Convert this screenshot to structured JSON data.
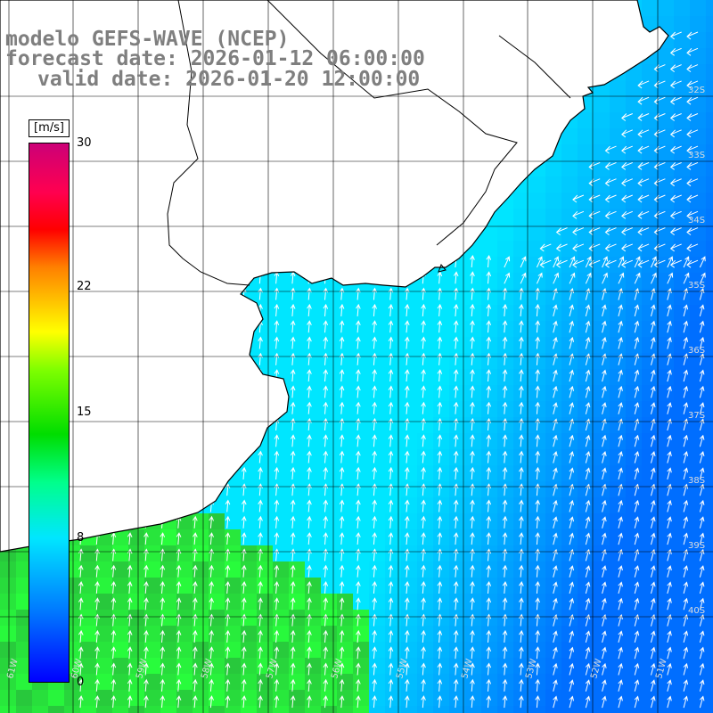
{
  "title": {
    "line1": "modelo GEFS-WAVE (NCEP)",
    "line2": "forecast date: 2026-01-12 06:00:00",
    "line3": "valid date: 2026-01-20 12:00:00"
  },
  "colorbar": {
    "unit": "[m/s]",
    "ticks": [
      {
        "label": "30",
        "value": 30
      },
      {
        "label": "22",
        "value": 22
      },
      {
        "label": "15",
        "value": 15
      },
      {
        "label": "8",
        "value": 8
      },
      {
        "label": "0",
        "value": 0
      }
    ]
  },
  "map": {
    "lat_labels": [
      "32S",
      "33S",
      "34S",
      "35S",
      "36S",
      "37S",
      "38S",
      "39S",
      "40S"
    ],
    "lon_labels": [
      "61W",
      "60W",
      "59W",
      "58W",
      "57W",
      "56W",
      "55W",
      "54W",
      "53W",
      "52W",
      "51W"
    ],
    "colors": {
      "land": "#ffffff",
      "coast": "#000000",
      "grid": "#000000",
      "arrows": "#ffffff"
    }
  }
}
